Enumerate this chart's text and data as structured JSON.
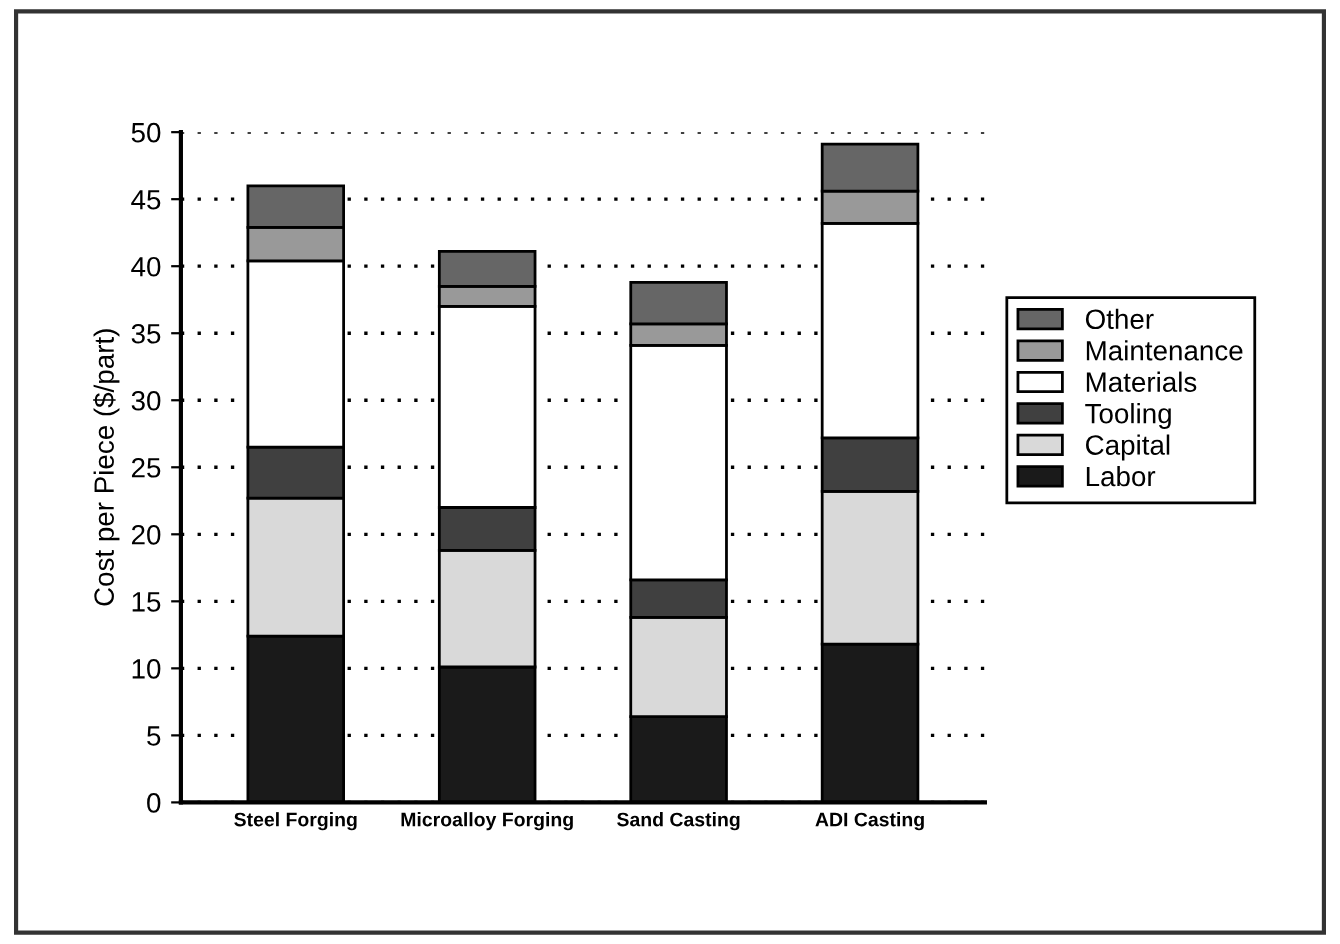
{
  "chart_data": {
    "type": "bar",
    "stacked": true,
    "ylabel": "Cost per Piece ($/part)",
    "categories": [
      "Steel Forging",
      "Microalloy Forging",
      "Sand Casting",
      "ADI Casting"
    ],
    "series": [
      {
        "name": "Labor",
        "color": "#1a1a1a",
        "values": [
          12.4,
          10.1,
          6.4,
          11.8
        ]
      },
      {
        "name": "Capital",
        "color": "#d9d9d9",
        "values": [
          10.3,
          8.7,
          7.4,
          11.4
        ]
      },
      {
        "name": "Tooling",
        "color": "#404040",
        "values": [
          3.8,
          3.2,
          2.8,
          4.0
        ]
      },
      {
        "name": "Materials",
        "color": "#ffffff",
        "values": [
          13.9,
          15.0,
          17.5,
          16.0
        ]
      },
      {
        "name": "Maintenance",
        "color": "#999999",
        "values": [
          2.5,
          1.5,
          1.6,
          2.4
        ]
      },
      {
        "name": "Other",
        "color": "#666666",
        "values": [
          3.1,
          2.6,
          3.1,
          3.5
        ]
      }
    ],
    "ylim": [
      0,
      50
    ],
    "yticks": [
      0,
      5,
      10,
      15,
      20,
      25,
      30,
      35,
      40,
      45,
      50
    ],
    "grid": "y",
    "legend": "right"
  }
}
